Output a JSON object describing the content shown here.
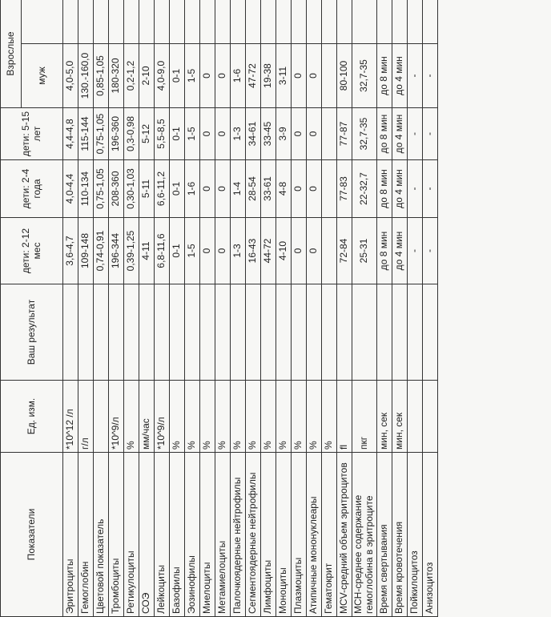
{
  "header": {
    "indicator": "Показатели",
    "unit": "Ед. изм.",
    "result": "Ваш результат",
    "age1": "дети: 2-12 мес",
    "age2": "дети: 2-4 года",
    "age3": "дети: 5-15 лет",
    "adults": "Взрослые",
    "male": "муж"
  },
  "table": {
    "rows": [
      [
        "Эритроциты",
        "*10^12 /л",
        "3,6-4,7",
        "4,0-4,4",
        "4,4-4,8",
        "4,0-5,0"
      ],
      [
        "Гемоглобин",
        "г/л",
        "109-148",
        "110-134",
        "115-144",
        "130.-160,0"
      ],
      [
        "Цветовой показатель",
        null,
        "0,74-0,91",
        "0,75-1,05",
        "0,75-1,05",
        "0,85-1,05"
      ],
      [
        "Тромбоциты",
        "*10^9/л",
        "196-344",
        "208-360",
        "196-360",
        "180-320"
      ],
      [
        "Ретикулоциты",
        "%",
        "0,39-1,25",
        "0,30-1,03",
        "0,3-0,98",
        "0,2-1,2"
      ],
      [
        "СОЭ",
        "мм/час",
        "4-11",
        "5-11",
        "5-12",
        "2-10"
      ],
      [
        "Лейкоциты",
        "*10^9/л",
        "6,8-11,6",
        "6,6-11,2",
        "5,5-8,5",
        "4,0-9,0"
      ],
      [
        "Базофилы",
        "%",
        "0-1",
        "0-1",
        "0-1",
        "0-1"
      ],
      [
        "Эозинофилы",
        "%",
        "1-5",
        "1-6",
        "1-5",
        "1-5"
      ],
      [
        "Миелоциты",
        "%",
        "0",
        "0",
        "0",
        "0"
      ],
      [
        "Метамиелоциты",
        "%",
        "0",
        "0",
        "0",
        "0"
      ],
      [
        "Палочкоядерные нейтрофилы",
        "%",
        "1-3",
        "1-4",
        "1-3",
        "1-6"
      ],
      [
        "Сегментоядерные нейтрофилы",
        "%",
        "16-43",
        "28-54",
        "34-61",
        "47-72"
      ],
      [
        "Лимфоциты",
        "%",
        "44-72",
        "33-61",
        "33-45",
        "19-38"
      ],
      [
        "Моноциты",
        "%",
        "4-10",
        "4-8",
        "3-9",
        "3-11"
      ],
      [
        "Плазмоциты",
        "%",
        "0",
        "0",
        "0",
        "0"
      ],
      [
        "Атипичные мононуклеары",
        "%",
        "0",
        "0",
        "0",
        "0"
      ],
      [
        "Гематокрит",
        "%",
        null,
        null,
        null,
        null
      ],
      [
        "MCV-средний объем эритроцитов",
        "fl",
        "72-84",
        "77-83",
        "77-87",
        "80-100"
      ],
      [
        "МСН-среднее содержание гемоглобина в эритроците",
        "пкг",
        "25-31",
        "22-32,7",
        "32,7-35",
        "32,7-35"
      ],
      [
        "Время свертывания",
        "мин, сек",
        "до 8 мин",
        "до 8 мин",
        "до 8 мин",
        "до 8 мин"
      ],
      [
        "Время кровотечения",
        "мин, сек",
        "до 4 мин",
        "до 4 мин",
        "до 4 мин",
        "до 4 мин"
      ],
      [
        "Пойкилоцитоз",
        null,
        "-",
        "-",
        "-",
        "-"
      ],
      [
        "Анизоцитоз",
        null,
        "-",
        "-",
        "-",
        "-"
      ]
    ]
  }
}
